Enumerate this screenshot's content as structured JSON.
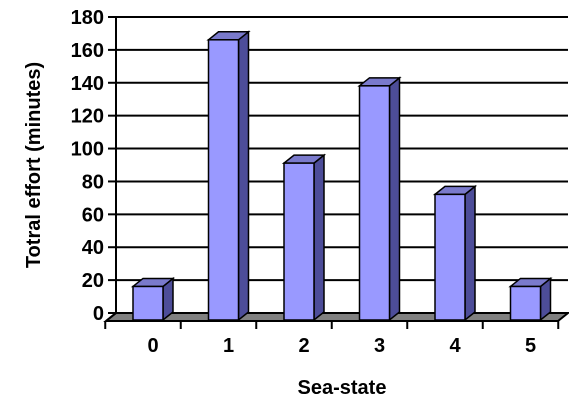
{
  "chart_data": {
    "type": "bar",
    "title": "",
    "xlabel": "Sea-state",
    "ylabel": "Totral effort (minutes)",
    "categories": [
      "0",
      "1",
      "2",
      "3",
      "4",
      "5"
    ],
    "values": [
      21,
      171,
      96,
      143,
      77,
      21
    ],
    "ylim": [
      0,
      180
    ],
    "yticks": [
      "0",
      "20",
      "40",
      "60",
      "80",
      "100",
      "120",
      "140",
      "160",
      "180"
    ],
    "grid": true,
    "legend": "none",
    "colors": {
      "bar_front": "#9999ff",
      "bar_side": "#4d4d99",
      "bar_top": "#7a7acc",
      "floor": "#808080",
      "grid": "#000000"
    }
  }
}
